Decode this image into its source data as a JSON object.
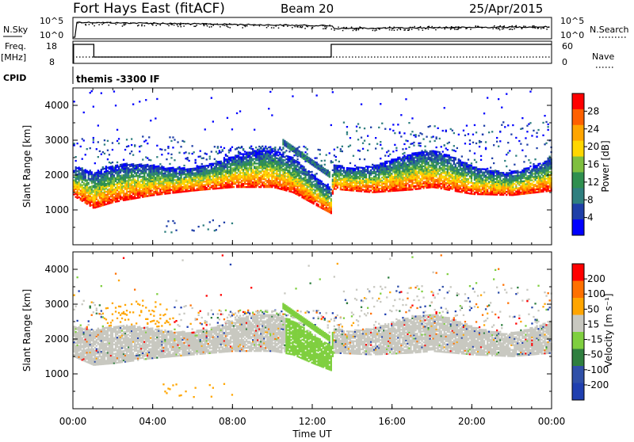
{
  "header": {
    "station": "Fort Hays East (fitACF)",
    "beam": "Beam 20",
    "date": "25/Apr/2015"
  },
  "summary": {
    "nsky_label": "N.Sky",
    "nsky_ticks": [
      "10^5",
      "10^0"
    ],
    "nsearch_label": "N.Search",
    "freq_label": "Freq.",
    "freq_unit": "[MHz]",
    "freq_ticks": [
      "18",
      "8"
    ],
    "nave_label": "Nave",
    "nave_ticks": [
      "60",
      "0"
    ],
    "cpid_label": "CPID",
    "cpid_text": "themis -3300 IF"
  },
  "chart_data": [
    {
      "type": "heatmap",
      "name": "power",
      "ylabel": "Slant Range [km]",
      "ylim": [
        0,
        4500
      ],
      "yticks": [
        1000,
        2000,
        3000,
        4000
      ],
      "xlim": [
        0,
        24
      ],
      "colorbar_label": "Power [dB]",
      "colorbar_ticks": [
        "28",
        "24",
        "20",
        "16",
        "12",
        "8",
        "4"
      ],
      "colors": [
        "#0000ff",
        "#1f3fa8",
        "#2f7f7f",
        "#2f8f4f",
        "#7fbf3f",
        "#ffd700",
        "#ffa500",
        "#ff6000",
        "#ff0000"
      ],
      "main_band_km": [
        [
          0,
          1600
        ],
        [
          1,
          1250
        ],
        [
          2,
          1420
        ],
        [
          4,
          1620
        ],
        [
          6,
          1750
        ],
        [
          8,
          1850
        ],
        [
          10,
          1850
        ],
        [
          11,
          1700
        ],
        [
          12,
          1380
        ],
        [
          12.9,
          1100
        ],
        [
          13,
          1800
        ],
        [
          15,
          1700
        ],
        [
          17,
          1780
        ],
        [
          18,
          1850
        ],
        [
          20,
          1650
        ],
        [
          22,
          1620
        ],
        [
          24,
          1750
        ]
      ]
    },
    {
      "type": "heatmap",
      "name": "velocity",
      "ylabel": "Slant Range [km]",
      "ylim": [
        0,
        4500
      ],
      "yticks": [
        1000,
        2000,
        3000,
        4000
      ],
      "xlim": [
        0,
        24
      ],
      "colorbar_label": "Velocity [m s⁻¹]",
      "colorbar_ticks": [
        "200",
        "100",
        "50",
        "15",
        "-15",
        "-50",
        "-100",
        "-200"
      ],
      "colors": [
        "#1f3fb0",
        "#3050a8",
        "#2f7f3f",
        "#7fcf3f",
        "#c8c8c0",
        "#ffa500",
        "#ff7000",
        "#ff0000"
      ],
      "main_band_km": [
        [
          0,
          1700
        ],
        [
          1,
          1450
        ],
        [
          2,
          1500
        ],
        [
          4,
          1650
        ],
        [
          6,
          1750
        ],
        [
          8,
          1850
        ],
        [
          10,
          1850
        ],
        [
          11,
          1750
        ],
        [
          12,
          1500
        ],
        [
          12.9,
          1300
        ],
        [
          13,
          1800
        ],
        [
          15,
          1750
        ],
        [
          17,
          1800
        ],
        [
          18,
          1850
        ],
        [
          20,
          1750
        ],
        [
          22,
          1700
        ],
        [
          24,
          1800
        ]
      ]
    }
  ],
  "xaxis": {
    "label": "Time UT",
    "ticks": [
      "00:00",
      "04:00",
      "08:00",
      "12:00",
      "16:00",
      "20:00",
      "00:00"
    ]
  }
}
